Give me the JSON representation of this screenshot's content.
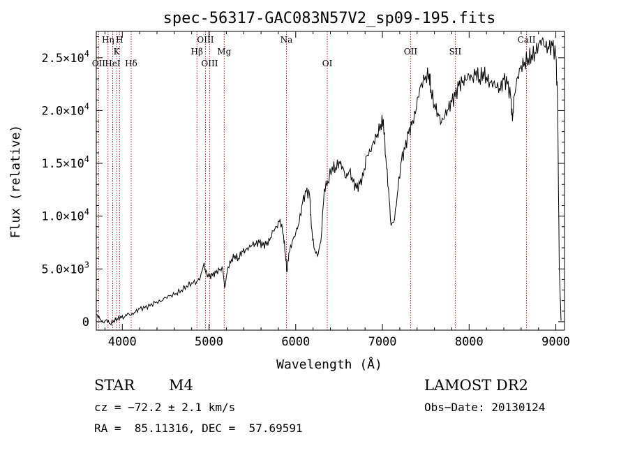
{
  "chart_data": {
    "type": "line",
    "title": "spec-56317-GAC083N57V2_sp09-195.fits",
    "xlabel": "Wavelength (Å)",
    "ylabel": "Flux (relative)",
    "xlim": [
      3700,
      9100
    ],
    "ylim": [
      -800,
      27500
    ],
    "x_ticks": [
      4000,
      5000,
      6000,
      7000,
      8000,
      9000
    ],
    "x_tick_labels": [
      "4000",
      "5000",
      "6000",
      "7000",
      "8000",
      "9000"
    ],
    "y_ticks": [
      0,
      5000,
      10000,
      15000,
      20000,
      25000
    ],
    "y_tick_labels": [
      {
        "mantissa": "0",
        "exp": ""
      },
      {
        "mantissa": "5.0×10",
        "exp": "3"
      },
      {
        "mantissa": "1.0×10",
        "exp": "4"
      },
      {
        "mantissa": "1.5×10",
        "exp": "4"
      },
      {
        "mantissa": "2.0×10",
        "exp": "4"
      },
      {
        "mantissa": "2.5×10",
        "exp": "4"
      }
    ],
    "grid": false,
    "series": [
      {
        "color": "#000000",
        "points": [
          [
            3700,
            700
          ],
          [
            3740,
            300
          ],
          [
            3780,
            -100
          ],
          [
            3820,
            200
          ],
          [
            3860,
            -200
          ],
          [
            3900,
            100
          ],
          [
            3940,
            300
          ],
          [
            3980,
            500
          ],
          [
            4020,
            400
          ],
          [
            4060,
            800
          ],
          [
            4100,
            600
          ],
          [
            4150,
            900
          ],
          [
            4200,
            1200
          ],
          [
            4260,
            1300
          ],
          [
            4320,
            1500
          ],
          [
            4380,
            1800
          ],
          [
            4440,
            1900
          ],
          [
            4500,
            2300
          ],
          [
            4560,
            2500
          ],
          [
            4620,
            2700
          ],
          [
            4680,
            3000
          ],
          [
            4740,
            3400
          ],
          [
            4800,
            3700
          ],
          [
            4860,
            3800
          ],
          [
            4900,
            4200
          ],
          [
            4940,
            5500
          ],
          [
            4960,
            4700
          ],
          [
            5000,
            4200
          ],
          [
            5040,
            4400
          ],
          [
            5080,
            4600
          ],
          [
            5120,
            4900
          ],
          [
            5160,
            5000
          ],
          [
            5180,
            3200
          ],
          [
            5220,
            5200
          ],
          [
            5260,
            5900
          ],
          [
            5300,
            6300
          ],
          [
            5340,
            6000
          ],
          [
            5380,
            6700
          ],
          [
            5420,
            6800
          ],
          [
            5460,
            7000
          ],
          [
            5500,
            7300
          ],
          [
            5540,
            7300
          ],
          [
            5580,
            7500
          ],
          [
            5620,
            7200
          ],
          [
            5660,
            7300
          ],
          [
            5700,
            7700
          ],
          [
            5740,
            8600
          ],
          [
            5780,
            9000
          ],
          [
            5820,
            9700
          ],
          [
            5860,
            8200
          ],
          [
            5880,
            6500
          ],
          [
            5900,
            4700
          ],
          [
            5920,
            6500
          ],
          [
            5960,
            7600
          ],
          [
            6000,
            8400
          ],
          [
            6040,
            9400
          ],
          [
            6080,
            11300
          ],
          [
            6120,
            12300
          ],
          [
            6160,
            12000
          ],
          [
            6180,
            9000
          ],
          [
            6210,
            7000
          ],
          [
            6250,
            6200
          ],
          [
            6290,
            7600
          ],
          [
            6330,
            12600
          ],
          [
            6370,
            13300
          ],
          [
            6420,
            14700
          ],
          [
            6460,
            14600
          ],
          [
            6500,
            15200
          ],
          [
            6540,
            14700
          ],
          [
            6580,
            13600
          ],
          [
            6620,
            14300
          ],
          [
            6660,
            13200
          ],
          [
            6700,
            12600
          ],
          [
            6740,
            13000
          ],
          [
            6780,
            13800
          ],
          [
            6820,
            15700
          ],
          [
            6860,
            16100
          ],
          [
            6900,
            17100
          ],
          [
            6940,
            17800
          ],
          [
            6980,
            18700
          ],
          [
            7010,
            19200
          ],
          [
            7040,
            15500
          ],
          [
            7070,
            12600
          ],
          [
            7100,
            9100
          ],
          [
            7140,
            9700
          ],
          [
            7180,
            12600
          ],
          [
            7220,
            15300
          ],
          [
            7260,
            16300
          ],
          [
            7300,
            17800
          ],
          [
            7340,
            18600
          ],
          [
            7380,
            19700
          ],
          [
            7410,
            21300
          ],
          [
            7450,
            22600
          ],
          [
            7500,
            23300
          ],
          [
            7540,
            23500
          ],
          [
            7560,
            22000
          ],
          [
            7600,
            20600
          ],
          [
            7640,
            19800
          ],
          [
            7680,
            18900
          ],
          [
            7720,
            19500
          ],
          [
            7760,
            20100
          ],
          [
            7800,
            20800
          ],
          [
            7840,
            21300
          ],
          [
            7880,
            22300
          ],
          [
            7920,
            22600
          ],
          [
            7960,
            22900
          ],
          [
            8000,
            23300
          ],
          [
            8040,
            23100
          ],
          [
            8080,
            23800
          ],
          [
            8120,
            23000
          ],
          [
            8160,
            23700
          ],
          [
            8200,
            23200
          ],
          [
            8240,
            22700
          ],
          [
            8280,
            22600
          ],
          [
            8320,
            22200
          ],
          [
            8360,
            21900
          ],
          [
            8400,
            22900
          ],
          [
            8440,
            22500
          ],
          [
            8480,
            21200
          ],
          [
            8500,
            19000
          ],
          [
            8520,
            21400
          ],
          [
            8560,
            23200
          ],
          [
            8600,
            24300
          ],
          [
            8640,
            24600
          ],
          [
            8680,
            25000
          ],
          [
            8720,
            25300
          ],
          [
            8760,
            25500
          ],
          [
            8800,
            26300
          ],
          [
            8840,
            26700
          ],
          [
            8880,
            26000
          ],
          [
            8920,
            25800
          ],
          [
            8960,
            26100
          ],
          [
            9000,
            25200
          ],
          [
            9020,
            21000
          ],
          [
            9040,
            5000
          ],
          [
            9060,
            100
          ]
        ]
      }
    ],
    "lines": [
      {
        "label": "OII",
        "x": 3727,
        "row": 3,
        "color": "#b22222"
      },
      {
        "label": "Hη",
        "x": 3835,
        "row": 1,
        "color": "#b22222"
      },
      {
        "label": "HeI",
        "x": 3889,
        "row": 3,
        "color": "#b22222"
      },
      {
        "label": "K",
        "x": 3934,
        "row": 2,
        "color": "#b22222"
      },
      {
        "label": "H",
        "x": 3968,
        "row": 1,
        "color": "#b22222"
      },
      {
        "label": "Hδ",
        "x": 4102,
        "row": 3,
        "color": "#b22222"
      },
      {
        "label": "Hβ",
        "x": 4861,
        "row": 2,
        "color": "#b22222"
      },
      {
        "label": "OIII",
        "x": 4959,
        "row": 1,
        "color": "#b22222"
      },
      {
        "label": "OIII",
        "x": 5007,
        "row": 3,
        "color": "#b22222"
      },
      {
        "label": "Mg",
        "x": 5175,
        "row": 2,
        "color": "#b22222"
      },
      {
        "label": "Na",
        "x": 5893,
        "row": 1,
        "color": "#b22222"
      },
      {
        "label": "OI",
        "x": 6364,
        "row": 3,
        "color": "#b22222"
      },
      {
        "label": "OII",
        "x": 7325,
        "row": 2,
        "color": "#b22222"
      },
      {
        "label": "SII",
        "x": 7840,
        "row": 2,
        "color": "#b22222"
      },
      {
        "label": "CaII",
        "x": 8662,
        "row": 1,
        "color": "#b22222"
      }
    ]
  },
  "info": {
    "object_class": "STAR",
    "subclass": "M4",
    "survey": "LAMOST DR2",
    "redshift": "cz = −72.2 ± 2.1 km/s",
    "obs_date": "Obs−Date: 20130124",
    "coordinates": "RA =  85.11316, DEC =  57.69591"
  }
}
